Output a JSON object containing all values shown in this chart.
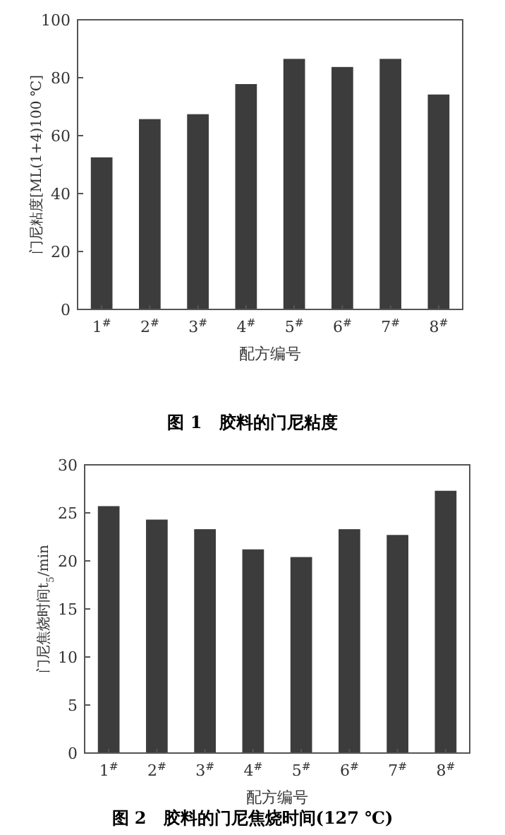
{
  "chart_data": [
    {
      "type": "bar",
      "title": "图 1　胶料的门尼粘度",
      "xlabel": "配方编号",
      "ylabel": "门尼粘度[ML(1+4)100 ℃]",
      "categories": [
        "1$^{#}$",
        "2$^{#}$",
        "3$^{#}$",
        "4$^{#}$",
        "5$^{#}$",
        "6$^{#}$",
        "7$^{#}$",
        "8$^{#}$"
      ],
      "values": [
        52.5,
        65.7,
        67.4,
        77.8,
        86.5,
        83.7,
        86.5,
        74.2
      ],
      "color": "#3c3c3c",
      "ylim": [
        0,
        100
      ],
      "yticks": [
        0,
        20,
        40,
        60,
        80,
        100
      ]
    },
    {
      "type": "bar",
      "title": "图 2　胶料的门尼焦烧时间(127 ℃)",
      "xlabel": "配方编号",
      "ylabel": "门尼焦烧时间t$_{5}$/min",
      "categories": [
        "1$^{#}$",
        "2$^{#}$",
        "3$^{#}$",
        "4$^{#}$",
        "5$^{#}$",
        "6$^{#}$",
        "7$^{#}$",
        "8$^{#}$"
      ],
      "values": [
        25.7,
        24.3,
        23.3,
        21.2,
        20.4,
        23.3,
        22.7,
        27.3
      ],
      "color": "#3c3c3c",
      "ylim": [
        0,
        30
      ],
      "yticks": [
        0,
        5,
        10,
        15,
        20,
        25,
        30
      ]
    }
  ]
}
